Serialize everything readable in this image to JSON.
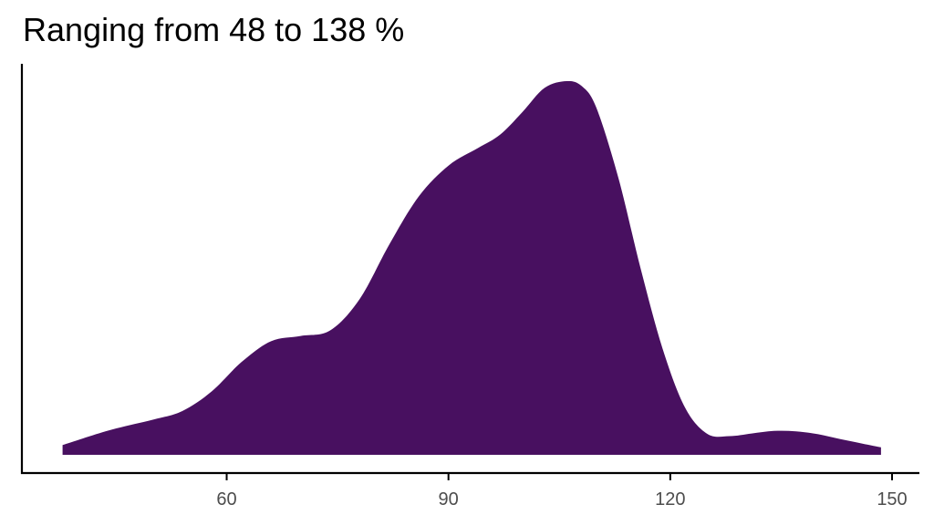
{
  "chart_data": {
    "type": "area",
    "subtype": "density",
    "title": "Ranging from 48 to 138 %",
    "xlabel": "",
    "ylabel": "",
    "xlim": [
      32.3,
      153.7
    ],
    "ylim": [
      0,
      1.05
    ],
    "x_ticks": [
      60,
      90,
      120,
      150
    ],
    "x_tick_labels": [
      "60",
      "90",
      "120",
      "150"
    ],
    "y_ticks": [],
    "grid": false,
    "legend": "none",
    "fill_color": "#481060",
    "axis_color": "#000000",
    "tick_label_color": "#4d4d4d",
    "x": [
      37.8,
      44,
      50,
      54,
      58,
      62,
      66,
      70,
      74,
      78,
      82,
      86,
      90,
      94,
      97,
      100,
      103,
      106,
      108,
      110,
      113,
      116,
      119,
      122,
      125,
      128,
      131,
      134,
      137,
      140,
      143,
      146,
      148.5
    ],
    "y": [
      0.026,
      0.065,
      0.094,
      0.117,
      0.17,
      0.248,
      0.304,
      0.318,
      0.333,
      0.417,
      0.563,
      0.692,
      0.774,
      0.821,
      0.857,
      0.917,
      0.982,
      1.0,
      0.987,
      0.929,
      0.74,
      0.498,
      0.282,
      0.126,
      0.056,
      0.05,
      0.057,
      0.064,
      0.063,
      0.055,
      0.042,
      0.03,
      0.02
    ]
  }
}
